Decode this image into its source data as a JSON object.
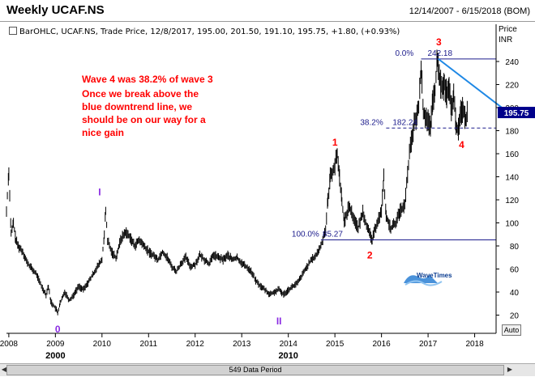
{
  "header": {
    "title": "Weekly UCAF.NS",
    "date_range": "12/14/2007 - 6/15/2018 (BOM)",
    "info_line": "BarOHLC, UCAF.NS, Trade Price, 12/8/2017, 195.00, 201.50, 191.10, 195.75, +1.80, (+0.93%)"
  },
  "annotation": {
    "line1": "Wave 4 was 38.2% of wave 3",
    "line2": "Once we break above the",
    "line3": "blue downtrend line, we",
    "line4": "should be on our way for a",
    "line5": "nice gain"
  },
  "price_axis": {
    "label_top": "Price",
    "label_unit": "INR"
  },
  "footer": {
    "data_period": "549 Data Period",
    "auto_label": "Auto"
  },
  "watermark": "WaveTimes",
  "colors": {
    "red_label": "#ff0000",
    "purple_label": "#8a2be2",
    "fib_blue": "#1c1c8c",
    "trend_blue": "#1e88e5",
    "price_badge": "#00008b"
  },
  "chart_data": {
    "type": "bar",
    "title": "Weekly UCAF.NS",
    "ylabel": "INR",
    "ylim": [
      0,
      260
    ],
    "yticks": [
      20,
      40,
      60,
      80,
      100,
      120,
      140,
      160,
      180,
      200,
      220,
      240
    ],
    "xlim": [
      2007.95,
      2018.46
    ],
    "xticks": [
      {
        "v": 2008,
        "label": "2008"
      },
      {
        "v": 2009,
        "label": "2009"
      },
      {
        "v": 2010,
        "label": "2010"
      },
      {
        "v": 2011,
        "label": "2011"
      },
      {
        "v": 2012,
        "label": "2012"
      },
      {
        "v": 2013,
        "label": "2013"
      },
      {
        "v": 2014,
        "label": "2014"
      },
      {
        "v": 2015,
        "label": "2015"
      },
      {
        "v": 2016,
        "label": "2016"
      },
      {
        "v": 2017,
        "label": "2017"
      },
      {
        "v": 2018,
        "label": "2018"
      }
    ],
    "decade_labels": [
      {
        "v": 2009,
        "label": "2000"
      },
      {
        "v": 2014,
        "label": "2010"
      }
    ],
    "last_price": {
      "value": 195.75,
      "label": "195.75"
    },
    "series": [
      {
        "points": [
          [
            2007.95,
            110
          ],
          [
            2008.0,
            145
          ],
          [
            2008.05,
            90
          ],
          [
            2008.1,
            100
          ],
          [
            2008.15,
            85
          ],
          [
            2008.2,
            80
          ],
          [
            2008.3,
            75
          ],
          [
            2008.4,
            65
          ],
          [
            2008.5,
            60
          ],
          [
            2008.6,
            55
          ],
          [
            2008.7,
            45
          ],
          [
            2008.8,
            38
          ],
          [
            2008.85,
            45
          ],
          [
            2008.9,
            32
          ],
          [
            2009.0,
            26
          ],
          [
            2009.05,
            22
          ],
          [
            2009.1,
            30
          ],
          [
            2009.2,
            40
          ],
          [
            2009.3,
            33
          ],
          [
            2009.4,
            38
          ],
          [
            2009.5,
            45
          ],
          [
            2009.6,
            42
          ],
          [
            2009.7,
            48
          ],
          [
            2009.8,
            55
          ],
          [
            2009.9,
            62
          ],
          [
            2010.0,
            68
          ],
          [
            2010.05,
            90
          ],
          [
            2010.08,
            110
          ],
          [
            2010.12,
            85
          ],
          [
            2010.2,
            75
          ],
          [
            2010.3,
            70
          ],
          [
            2010.4,
            85
          ],
          [
            2010.5,
            92
          ],
          [
            2010.6,
            88
          ],
          [
            2010.7,
            80
          ],
          [
            2010.8,
            85
          ],
          [
            2010.9,
            80
          ],
          [
            2011.0,
            75
          ],
          [
            2011.1,
            72
          ],
          [
            2011.2,
            68
          ],
          [
            2011.3,
            75
          ],
          [
            2011.4,
            70
          ],
          [
            2011.5,
            62
          ],
          [
            2011.6,
            58
          ],
          [
            2011.7,
            65
          ],
          [
            2011.8,
            70
          ],
          [
            2011.9,
            62
          ],
          [
            2012.0,
            64
          ],
          [
            2012.1,
            72
          ],
          [
            2012.2,
            68
          ],
          [
            2012.3,
            65
          ],
          [
            2012.4,
            72
          ],
          [
            2012.5,
            70
          ],
          [
            2012.6,
            68
          ],
          [
            2012.7,
            72
          ],
          [
            2012.8,
            68
          ],
          [
            2012.9,
            70
          ],
          [
            2013.0,
            65
          ],
          [
            2013.1,
            62
          ],
          [
            2013.2,
            58
          ],
          [
            2013.3,
            50
          ],
          [
            2013.4,
            45
          ],
          [
            2013.5,
            42
          ],
          [
            2013.6,
            38
          ],
          [
            2013.7,
            40
          ],
          [
            2013.8,
            42
          ],
          [
            2013.9,
            38
          ],
          [
            2014.0,
            42
          ],
          [
            2014.1,
            45
          ],
          [
            2014.2,
            48
          ],
          [
            2014.3,
            55
          ],
          [
            2014.4,
            62
          ],
          [
            2014.5,
            68
          ],
          [
            2014.6,
            72
          ],
          [
            2014.7,
            80
          ],
          [
            2014.8,
            95
          ],
          [
            2014.85,
            120
          ],
          [
            2014.9,
            140
          ],
          [
            2015.0,
            150
          ],
          [
            2015.05,
            160
          ],
          [
            2015.1,
            140
          ],
          [
            2015.15,
            120
          ],
          [
            2015.2,
            100
          ],
          [
            2015.3,
            115
          ],
          [
            2015.4,
            105
          ],
          [
            2015.5,
            95
          ],
          [
            2015.6,
            110
          ],
          [
            2015.7,
            95
          ],
          [
            2015.75,
            90
          ],
          [
            2015.8,
            85
          ],
          [
            2015.9,
            100
          ],
          [
            2016.0,
            110
          ],
          [
            2016.05,
            140
          ],
          [
            2016.1,
            105
          ],
          [
            2016.2,
            95
          ],
          [
            2016.3,
            100
          ],
          [
            2016.4,
            110
          ],
          [
            2016.5,
            115
          ],
          [
            2016.6,
            160
          ],
          [
            2016.7,
            185
          ],
          [
            2016.8,
            200
          ],
          [
            2016.85,
            235
          ],
          [
            2016.9,
            195
          ],
          [
            2017.0,
            190
          ],
          [
            2017.05,
            180
          ],
          [
            2017.1,
            205
          ],
          [
            2017.15,
            215
          ],
          [
            2017.2,
            242
          ],
          [
            2017.25,
            225
          ],
          [
            2017.3,
            215
          ],
          [
            2017.35,
            220
          ],
          [
            2017.4,
            210
          ],
          [
            2017.45,
            215
          ],
          [
            2017.5,
            200
          ],
          [
            2017.55,
            210
          ],
          [
            2017.6,
            185
          ],
          [
            2017.65,
            180
          ],
          [
            2017.7,
            195
          ],
          [
            2017.75,
            200
          ],
          [
            2017.8,
            190
          ],
          [
            2017.85,
            195.75
          ]
        ]
      }
    ],
    "fib_levels": [
      {
        "pct": "0.0%",
        "value": 242.18,
        "label": "242.18",
        "from": 2016.85,
        "to": 2018.45,
        "style": "solid"
      },
      {
        "pct": "38.2%",
        "value": 182.24,
        "label": "182.24",
        "from": 2016.1,
        "to": 2018.45,
        "style": "dashed"
      },
      {
        "pct": "100.0%",
        "value": 85.27,
        "label": "85.27",
        "from": 2014.7,
        "to": 2018.45,
        "style": "solid"
      }
    ],
    "trendline": {
      "from": [
        2017.22,
        242.18
      ],
      "to": [
        2018.46,
        198
      ]
    },
    "wave_labels": [
      {
        "label": "0",
        "x": 2009.05,
        "y": 5,
        "color": "purple"
      },
      {
        "label": "I",
        "x": 2009.95,
        "y": 124,
        "color": "purple"
      },
      {
        "label": "II",
        "x": 2013.8,
        "y": 12,
        "color": "purple"
      },
      {
        "label": "1",
        "x": 2015.0,
        "y": 167,
        "color": "red"
      },
      {
        "label": "2",
        "x": 2015.75,
        "y": 69,
        "color": "red"
      },
      {
        "label": "3",
        "x": 2017.23,
        "y": 254,
        "color": "red"
      },
      {
        "label": "4",
        "x": 2017.72,
        "y": 165,
        "color": "red"
      }
    ]
  }
}
